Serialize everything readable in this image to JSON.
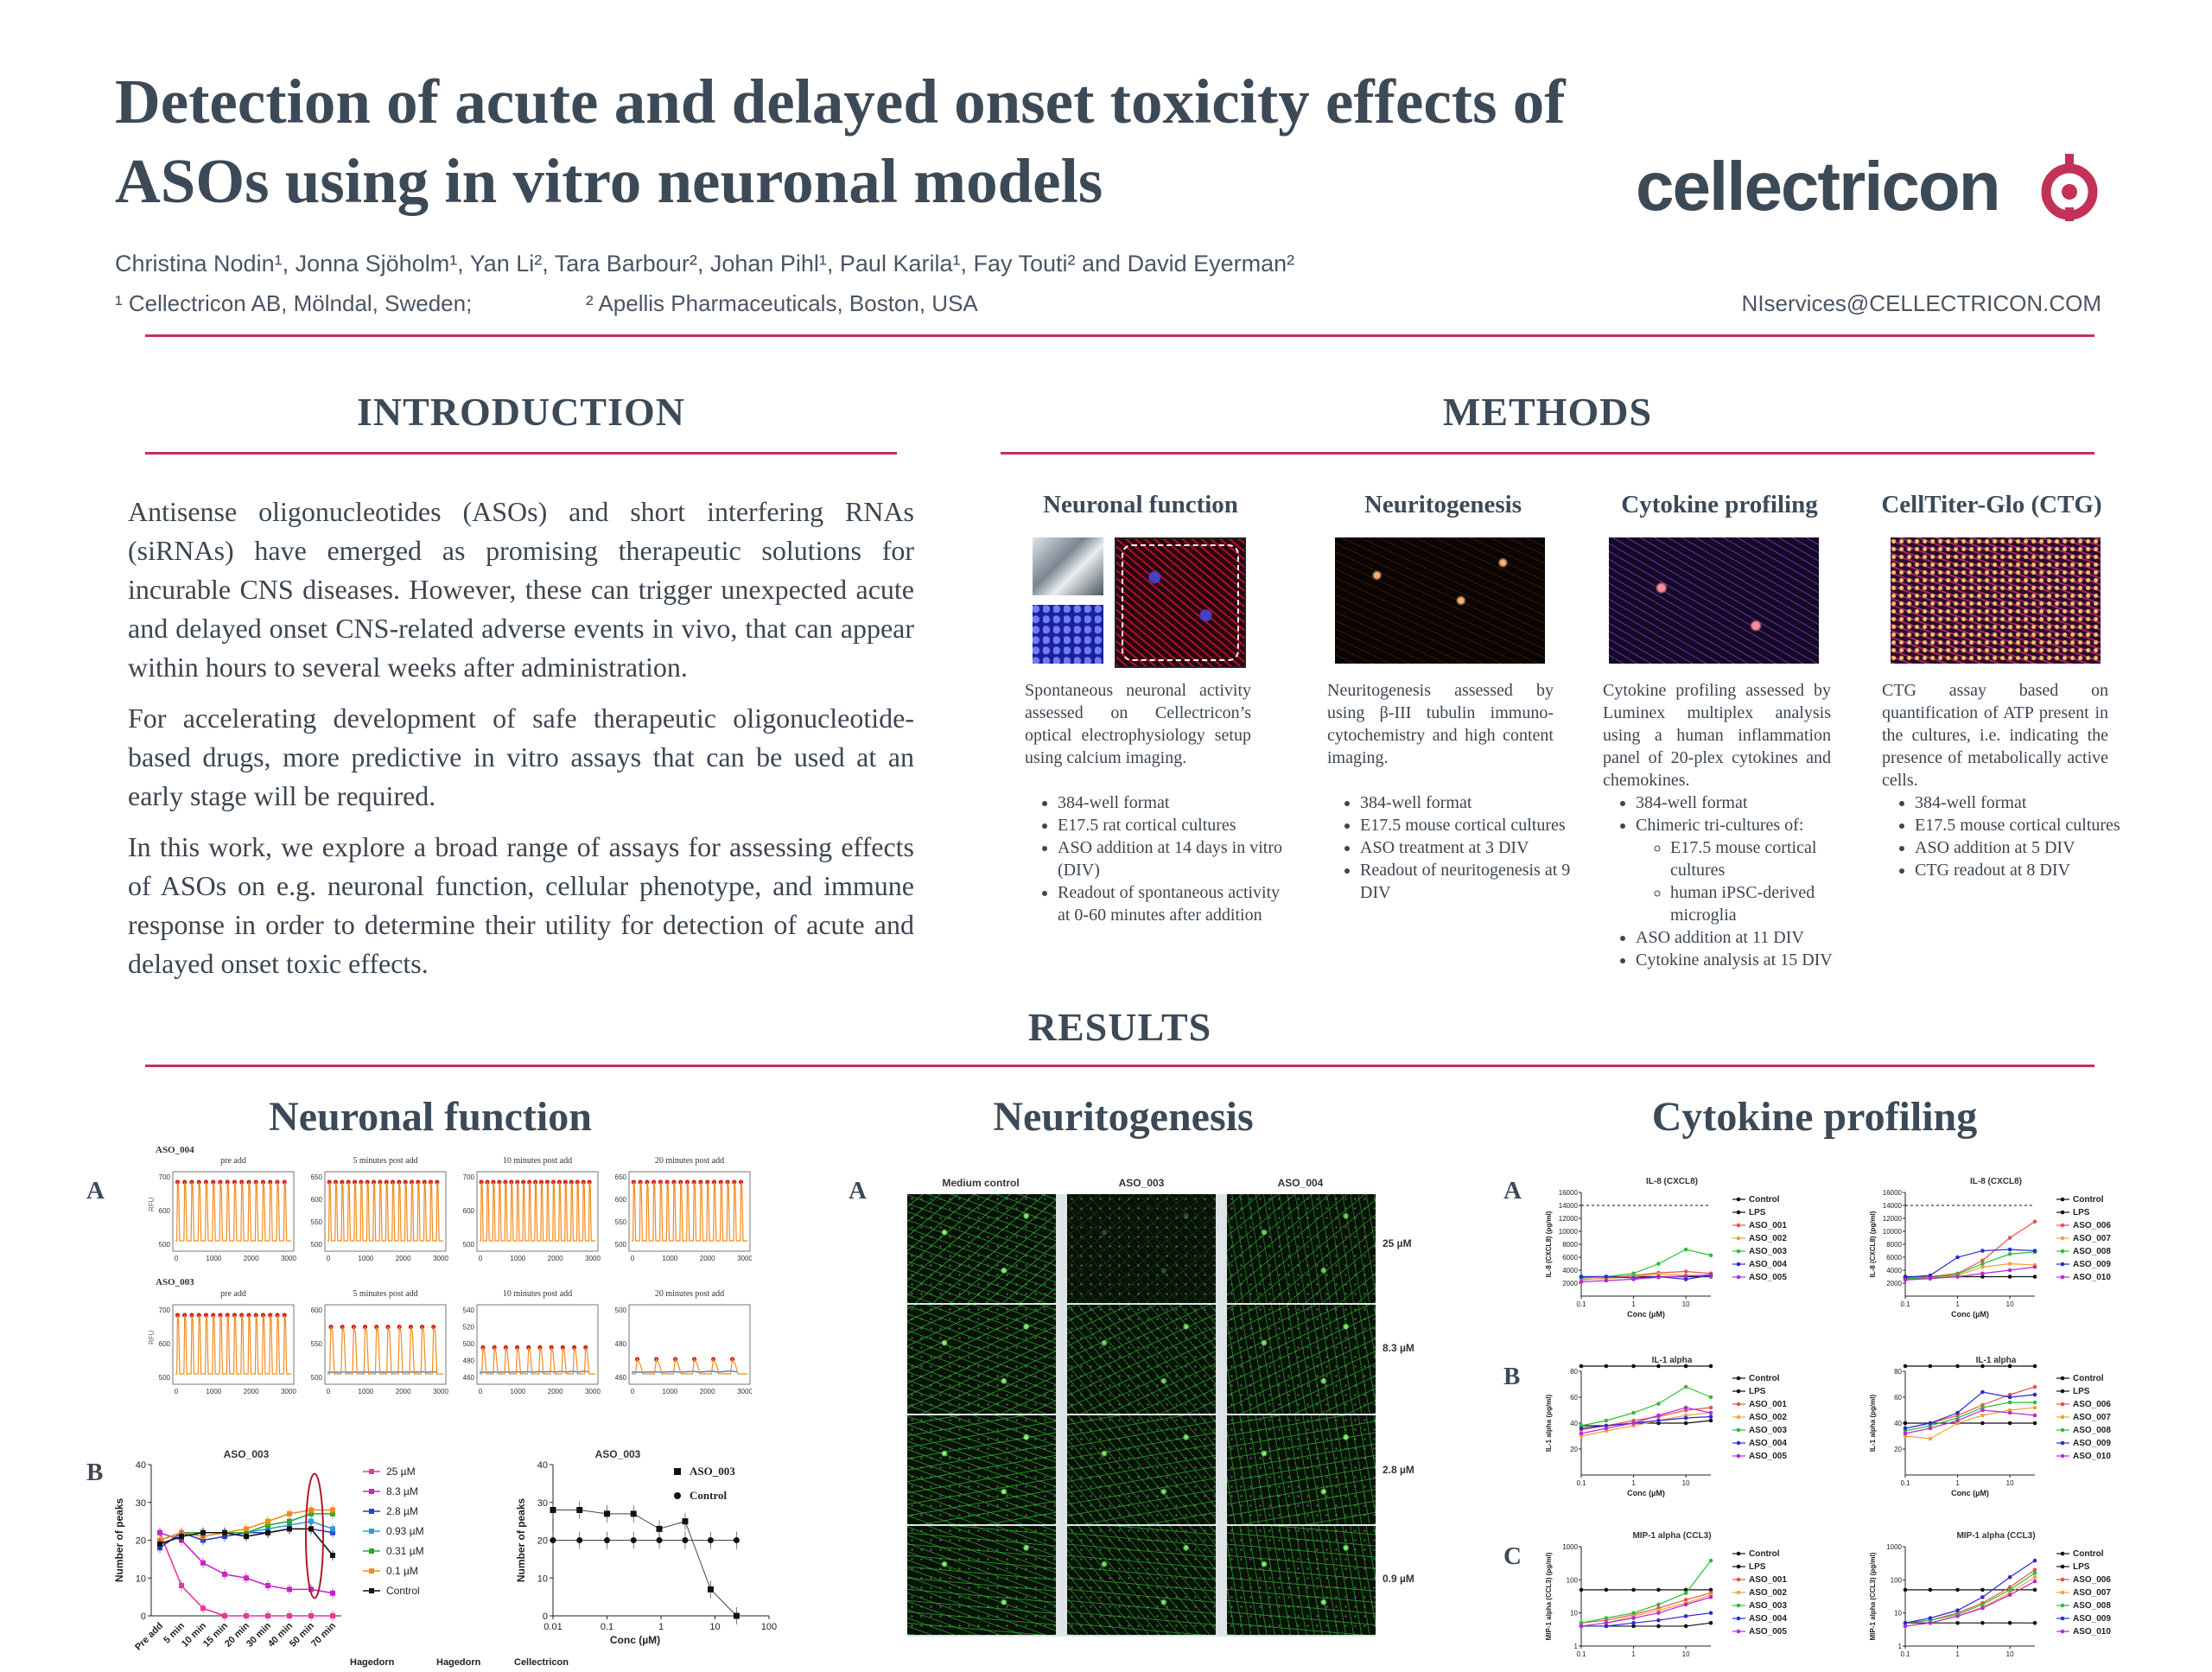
{
  "header": {
    "title_line1": "Detection of acute and delayed onset toxicity effects of",
    "title_line2": "ASOs using in vitro neuronal models",
    "logo_text": "cellectricon",
    "authors": "Christina Nodin¹, Jonna Sjöholm¹, Yan Li², Tara Barbour², Johan Pihl¹, Paul Karila¹, Fay Touti² and David Eyerman²",
    "affil1": "¹ Cellectricon AB, Mölndal, Sweden;",
    "affil2": "² Apellis Pharmaceuticals, Boston, USA",
    "email": "NIservices@CELLECTRICON.COM"
  },
  "introduction": {
    "heading": "INTRODUCTION",
    "paragraphs": [
      "Antisense oligonucleotides (ASOs) and short interfering RNAs (siRNAs) have emerged as promising therapeutic solutions for incurable CNS diseases. However, these can trigger unexpected acute and delayed onset CNS-related adverse events in vivo, that can appear within hours to several weeks after administration.",
      "For accelerating development of safe therapeutic oligonucleotide-based drugs, more predictive in vitro assays that can be used at an early stage will be required.",
      "In this work, we explore a broad range of assays for assessing effects of ASOs on e.g. neuronal function, cellular phenotype, and immune response in order to determine their utility for detection of acute and delayed onset toxic effects."
    ]
  },
  "methods": {
    "heading": "METHODS",
    "columns": [
      {
        "title": "Neuronal function",
        "desc": "Spontaneous neuronal activity assessed on Cellectricon’s optical electrophysiology setup using calcium imaging.",
        "bullets": [
          "384-well format",
          "E17.5 rat cortical cultures",
          "ASO addition at 14 days in vitro (DIV)",
          "Readout of spontaneous activity at 0-60 minutes after addition"
        ]
      },
      {
        "title": "Neuritogenesis",
        "desc": "Neuritogenesis assessed by using β-III tubulin immuno-cytochemistry and high content imaging.",
        "bullets": [
          "384-well format",
          "E17.5 mouse cortical cultures",
          "ASO treatment at 3 DIV",
          "Readout of neuritogenesis at 9 DIV"
        ]
      },
      {
        "title": "Cytokine profiling",
        "desc": "Cytokine profiling assessed by Luminex multiplex analysis using a human inflammation panel of 20-plex cytokines and chemokines.",
        "bullets": [
          "384-well format",
          "Chimeric tri-cultures of:",
          "ASO addition at 11 DIV",
          "Cytokine analysis at 15 DIV"
        ],
        "sub_bullets": [
          "E17.5 mouse cortical cultures",
          "human iPSC-derived microglia"
        ]
      },
      {
        "title": "CellTiter-Glo (CTG)",
        "desc": "CTG assay based on quantification of ATP present in the cultures, i.e. indicating the presence of metabolically active cells.",
        "bullets": [
          "384-well format",
          "E17.5 mouse cortical cultures",
          "ASO addition at 5 DIV",
          "CTG readout at 8 DIV"
        ]
      }
    ]
  },
  "results": {
    "heading": "RESULTS",
    "neuronal": {
      "heading": "Neuronal function",
      "label_a": "A",
      "label_b": "B",
      "row1_title": "ASO_004",
      "row2_title": "ASO_003",
      "trace_titles": [
        "pre add",
        "5 minutes post add",
        "10 minutes post add",
        "20 minutes post add"
      ],
      "rfu_label": "RFU",
      "x_ticks": [
        "0",
        "1000",
        "2000",
        "3000"
      ],
      "row1_yticks": [
        [
          "700",
          "600",
          "500"
        ],
        [
          "650",
          "600",
          "550",
          "500"
        ],
        [
          "700",
          "600",
          "500"
        ],
        [
          "650",
          "600",
          "550",
          "500"
        ]
      ],
      "row2_yticks": [
        [
          "700",
          "600",
          "500"
        ],
        [
          "600",
          "550",
          "500"
        ],
        [
          "540",
          "520",
          "500",
          "480",
          "460"
        ],
        [
          "500",
          "480",
          "460"
        ]
      ],
      "footer_labels": [
        "Hagedorn",
        "Hagedorn",
        "Cellectricon"
      ]
    },
    "neurito": {
      "heading": "Neuritogenesis",
      "label_a": "A",
      "columns": [
        "Medium control",
        "ASO_003",
        "ASO_004"
      ],
      "concentrations": [
        "25 µM",
        "8.3 µM",
        "2.8 µM",
        "0.9 µM"
      ]
    },
    "cytokine": {
      "heading": "Cytokine profiling",
      "labels": [
        "A",
        "B",
        "C"
      ],
      "legend_left": [
        "Control",
        "LPS",
        "ASO_001",
        "ASO_002",
        "ASO_003",
        "ASO_004",
        "ASO_005"
      ],
      "legend_right": [
        "Control",
        "LPS",
        "ASO_006",
        "ASO_007",
        "ASO_008",
        "ASO_009",
        "ASO_010"
      ],
      "xlabel": "Conc (µM)",
      "x_ticks": [
        "0.1",
        "1",
        "10"
      ]
    }
  },
  "colors": {
    "accent": "#c43158",
    "heading": "#3c4a58",
    "series": [
      "#111111",
      "#111111",
      "#e8534a",
      "#f5a142",
      "#2ebd3a",
      "#2a2ad6",
      "#b62ad6"
    ]
  },
  "chart_data": [
    {
      "type": "line",
      "title": "ASO_003",
      "xlabel": "",
      "ylabel": "Number of peaks",
      "categories": [
        "Pre add",
        "5 min",
        "10 min",
        "15 min",
        "20 min",
        "30 min",
        "40 min",
        "50 min",
        "70 min"
      ],
      "ylim": [
        0,
        40
      ],
      "yticks": [
        "0",
        "10",
        "20",
        "30",
        "40"
      ],
      "series": [
        {
          "name": "25 µM",
          "color": "#e6399b",
          "values": [
            22,
            8,
            2,
            0,
            0,
            0,
            0,
            0,
            0
          ]
        },
        {
          "name": "8.3 µM",
          "color": "#c526c5",
          "values": [
            22,
            20,
            14,
            11,
            10,
            8,
            7,
            7,
            6
          ]
        },
        {
          "name": "2.8 µM",
          "color": "#2b3fcf",
          "values": [
            18,
            22,
            20,
            21,
            22,
            22,
            23,
            23,
            22
          ]
        },
        {
          "name": "0.93 µM",
          "color": "#2a9ed6",
          "values": [
            19,
            21,
            22,
            22,
            22,
            23,
            24,
            25,
            23
          ]
        },
        {
          "name": "0.31 µM",
          "color": "#2ca636",
          "values": [
            20,
            22,
            22,
            22,
            22,
            24,
            25,
            27,
            27
          ]
        },
        {
          "name": "0.1 µM",
          "color": "#f08a1c",
          "values": [
            20,
            22,
            21,
            22,
            23,
            25,
            27,
            28,
            28
          ]
        },
        {
          "name": "Control",
          "color": "#111111",
          "values": [
            19,
            21,
            22,
            22,
            21,
            22,
            23,
            23,
            16
          ]
        }
      ]
    },
    {
      "type": "scatter",
      "title": "ASO_003",
      "xlabel": "Conc (µM)",
      "ylabel": "Number of peaks",
      "x_scale": "log",
      "xlim": [
        0.01,
        100
      ],
      "ylim": [
        0,
        40
      ],
      "xticks": [
        "0.01",
        "0.1",
        "1",
        "10",
        "100"
      ],
      "yticks": [
        "0",
        "10",
        "20",
        "30",
        "40"
      ],
      "series": [
        {
          "name": "ASO_003",
          "marker": "square",
          "x": [
            0.01,
            0.031,
            0.1,
            0.31,
            0.93,
            2.8,
            8.3,
            25
          ],
          "y": [
            28,
            28,
            27,
            27,
            23,
            25,
            7,
            0
          ]
        },
        {
          "name": "Control",
          "marker": "circle",
          "x": [
            0.01,
            0.031,
            0.1,
            0.31,
            0.93,
            2.8,
            8.3,
            25
          ],
          "y": [
            20,
            20,
            20,
            20,
            20,
            20,
            20,
            20
          ]
        }
      ]
    },
    {
      "type": "line",
      "title": "IL-8 (CXCL8)",
      "ylabel": "IL-8 (CXCL8) (pg/ml)",
      "xlabel": "Conc (µM)",
      "x_scale": "log",
      "xlim": [
        0.1,
        30
      ],
      "ylim": [
        0,
        16000
      ],
      "yticks": [
        "16000",
        "14000",
        "12000",
        "10000",
        "8000",
        "6000",
        "4000",
        "2000"
      ],
      "x": [
        0.1,
        0.3,
        1,
        3,
        10,
        30
      ],
      "series": [
        {
          "name": "Control",
          "values": [
            3000,
            3000,
            3000,
            3000,
            3000,
            3000
          ]
        },
        {
          "name": "LPS",
          "values": [
            14000,
            14000,
            14000,
            14000,
            14000,
            14000
          ]
        },
        {
          "name": "ASO_001",
          "values": [
            2500,
            2800,
            3200,
            3600,
            3800,
            3500
          ]
        },
        {
          "name": "ASO_002",
          "values": [
            2600,
            2700,
            3000,
            3400,
            3200,
            3100
          ]
        },
        {
          "name": "ASO_003",
          "values": [
            2800,
            3000,
            3500,
            5000,
            7200,
            6300
          ]
        },
        {
          "name": "ASO_004",
          "values": [
            3000,
            3000,
            2800,
            3000,
            2600,
            3200
          ]
        },
        {
          "name": "ASO_005",
          "values": [
            2200,
            2400,
            2600,
            2900,
            3100,
            3300
          ]
        }
      ]
    },
    {
      "type": "line",
      "title": "IL-8 (CXCL8)",
      "ylabel": "IL-8 (CXCL8) (pg/ml)",
      "xlabel": "Conc (µM)",
      "x_scale": "log",
      "xlim": [
        0.1,
        30
      ],
      "ylim": [
        0,
        16000
      ],
      "yticks": [
        "16000",
        "14000",
        "12000",
        "10000",
        "8000",
        "6000",
        "4000",
        "2000"
      ],
      "x": [
        0.1,
        0.3,
        1,
        3,
        10,
        30
      ],
      "series": [
        {
          "name": "Control",
          "values": [
            3000,
            3000,
            3000,
            3000,
            3000,
            3000
          ]
        },
        {
          "name": "LPS",
          "values": [
            14000,
            14000,
            14000,
            14000,
            14000,
            14000
          ]
        },
        {
          "name": "ASO_006",
          "values": [
            2800,
            3000,
            3500,
            5500,
            9000,
            11500
          ]
        },
        {
          "name": "ASO_007",
          "values": [
            2600,
            2800,
            3200,
            4500,
            5000,
            4800
          ]
        },
        {
          "name": "ASO_008",
          "values": [
            2700,
            2800,
            3400,
            5000,
            6500,
            6800
          ]
        },
        {
          "name": "ASO_009",
          "values": [
            2900,
            3200,
            6000,
            7000,
            7200,
            7000
          ]
        },
        {
          "name": "ASO_010",
          "values": [
            2500,
            2700,
            3000,
            3500,
            4000,
            4500
          ]
        }
      ]
    },
    {
      "type": "line",
      "title": "IL-1 alpha",
      "ylabel": "IL-1 alpha (pg/ml)",
      "xlabel": "Conc (µM)",
      "x_scale": "log",
      "xlim": [
        0.1,
        30
      ],
      "ylim": [
        0,
        80
      ],
      "yticks": [
        "80",
        "60",
        "40",
        "20"
      ],
      "x": [
        0.1,
        0.3,
        1,
        3,
        10,
        30
      ],
      "series": [
        {
          "name": "Control",
          "values": [
            38,
            38,
            40,
            40,
            40,
            42
          ]
        },
        {
          "name": "LPS",
          "values": [
            84,
            84,
            84,
            84,
            84,
            84
          ]
        },
        {
          "name": "ASO_001",
          "values": [
            35,
            38,
            42,
            45,
            50,
            52
          ]
        },
        {
          "name": "ASO_002",
          "values": [
            30,
            34,
            38,
            42,
            46,
            48
          ]
        },
        {
          "name": "ASO_003",
          "values": [
            38,
            42,
            48,
            55,
            68,
            60
          ]
        },
        {
          "name": "ASO_004",
          "values": [
            36,
            38,
            40,
            42,
            44,
            45
          ]
        },
        {
          "name": "ASO_005",
          "values": [
            32,
            36,
            40,
            46,
            52,
            48
          ]
        }
      ]
    },
    {
      "type": "line",
      "title": "IL-1 alpha",
      "ylabel": "IL-1 alpha (pg/ml)",
      "xlabel": "Conc (µM)",
      "x_scale": "log",
      "xlim": [
        0.1,
        30
      ],
      "ylim": [
        0,
        80
      ],
      "yticks": [
        "80",
        "60",
        "40",
        "20"
      ],
      "x": [
        0.1,
        0.3,
        1,
        3,
        10,
        30
      ],
      "series": [
        {
          "name": "Control",
          "values": [
            40,
            40,
            40,
            40,
            40,
            40
          ]
        },
        {
          "name": "LPS",
          "values": [
            84,
            84,
            84,
            84,
            84,
            84
          ]
        },
        {
          "name": "ASO_006",
          "values": [
            36,
            40,
            46,
            54,
            62,
            68
          ]
        },
        {
          "name": "ASO_007",
          "values": [
            30,
            28,
            40,
            46,
            50,
            52
          ]
        },
        {
          "name": "ASO_008",
          "values": [
            34,
            38,
            44,
            52,
            56,
            56
          ]
        },
        {
          "name": "ASO_009",
          "values": [
            36,
            40,
            48,
            64,
            60,
            62
          ]
        },
        {
          "name": "ASO_010",
          "values": [
            32,
            36,
            42,
            50,
            48,
            46
          ]
        }
      ]
    },
    {
      "type": "line",
      "title": "MIP-1 alpha (CCL3)",
      "ylabel": "MIP-1 alpha (CCL3) (pg/ml)",
      "xlabel": "Conc (µM)",
      "x_scale": "log",
      "y_scale": "log",
      "xlim": [
        0.1,
        30
      ],
      "ylim": [
        1,
        1000
      ],
      "yticks": [
        "1000",
        "100",
        "10",
        "1"
      ],
      "x": [
        0.1,
        0.3,
        1,
        3,
        10,
        30
      ],
      "series": [
        {
          "name": "Control",
          "values": [
            4,
            4,
            4,
            4,
            4,
            5
          ]
        },
        {
          "name": "LPS",
          "values": [
            50,
            50,
            50,
            50,
            50,
            50
          ]
        },
        {
          "name": "ASO_001",
          "values": [
            5,
            6,
            9,
            14,
            25,
            40
          ]
        },
        {
          "name": "ASO_002",
          "values": [
            4,
            5,
            8,
            12,
            20,
            35
          ]
        },
        {
          "name": "ASO_003",
          "values": [
            5,
            7,
            10,
            18,
            40,
            380
          ]
        },
        {
          "name": "ASO_004",
          "values": [
            4,
            4,
            5,
            6,
            8,
            10
          ]
        },
        {
          "name": "ASO_005",
          "values": [
            4,
            5,
            7,
            10,
            18,
            30
          ]
        }
      ]
    },
    {
      "type": "line",
      "title": "MIP-1 alpha (CCL3)",
      "ylabel": "MIP-1 alpha (CCL3) (pg/ml)",
      "xlabel": "Conc (µM)",
      "x_scale": "log",
      "y_scale": "log",
      "xlim": [
        0.1,
        30
      ],
      "ylim": [
        1,
        1000
      ],
      "yticks": [
        "1000",
        "100",
        "10",
        "1"
      ],
      "x": [
        0.1,
        0.3,
        1,
        3,
        10,
        30
      ],
      "series": [
        {
          "name": "Control",
          "values": [
            5,
            5,
            5,
            5,
            5,
            5
          ]
        },
        {
          "name": "LPS",
          "values": [
            50,
            50,
            50,
            50,
            50,
            50
          ]
        },
        {
          "name": "ASO_006",
          "values": [
            5,
            6,
            10,
            20,
            60,
            200
          ]
        },
        {
          "name": "ASO_007",
          "values": [
            4,
            5,
            8,
            15,
            40,
            120
          ]
        },
        {
          "name": "ASO_008",
          "values": [
            5,
            6,
            9,
            18,
            50,
            160
          ]
        },
        {
          "name": "ASO_009",
          "values": [
            5,
            7,
            12,
            30,
            120,
            380
          ]
        },
        {
          "name": "ASO_010",
          "values": [
            4,
            5,
            8,
            14,
            35,
            90
          ]
        }
      ]
    }
  ]
}
